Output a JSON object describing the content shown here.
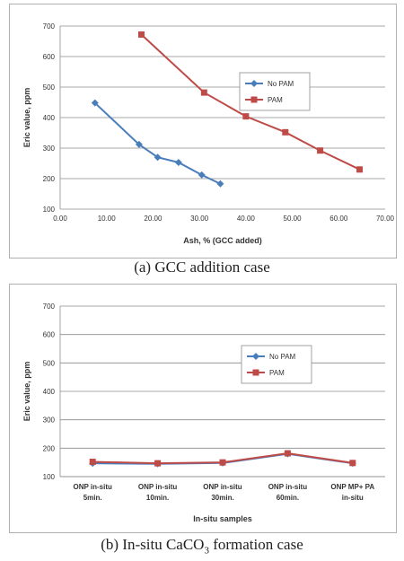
{
  "charts": [
    {
      "type": "line",
      "caption": "(a) GCC addition case",
      "xlabel": "Ash, % (GCC added)",
      "ylabel": "Eric value, ppm",
      "xlim": [
        0,
        70
      ],
      "ylim": [
        100,
        700
      ],
      "xticks": [
        "0.00",
        "10.00",
        "20.00",
        "30.00",
        "40.00",
        "50.00",
        "60.00",
        "70.00"
      ],
      "yticks": [
        "100",
        "200",
        "300",
        "400",
        "500",
        "600",
        "700"
      ],
      "grid": true,
      "legend_position": "right",
      "series": [
        {
          "name": "No PAM",
          "color": "#4a7ebb",
          "marker": "diamond",
          "x": [
            7.5,
            17.0,
            21.0,
            25.5,
            30.5,
            34.5
          ],
          "y": [
            448,
            312,
            270,
            253,
            212,
            183
          ]
        },
        {
          "name": "PAM",
          "color": "#be4b48",
          "marker": "square",
          "x": [
            17.5,
            31.0,
            40.0,
            48.5,
            56.0,
            64.5
          ],
          "y": [
            672,
            482,
            404,
            352,
            292,
            230
          ]
        }
      ]
    },
    {
      "type": "line",
      "caption_prefix": "(b) In-situ CaCO",
      "caption_sub": "3",
      "caption_suffix": " formation case",
      "xlabel": "In-situ samples",
      "ylabel": "Eric value, ppm",
      "ylim": [
        100,
        700
      ],
      "yticks": [
        "100",
        "200",
        "300",
        "400",
        "500",
        "600",
        "700"
      ],
      "categories": [
        [
          "ONP in-situ",
          "5min."
        ],
        [
          "ONP in-situ",
          "10min."
        ],
        [
          "ONP in-situ",
          "30min."
        ],
        [
          "ONP in-situ",
          "60min."
        ],
        [
          "ONP MP+ PA",
          "in-situ"
        ]
      ],
      "grid": true,
      "legend_position": "right",
      "series": [
        {
          "name": "No PAM",
          "color": "#4a7ebb",
          "marker": "diamond",
          "values": [
            147,
            145,
            148,
            180,
            147
          ]
        },
        {
          "name": "PAM",
          "color": "#be4b48",
          "marker": "square",
          "values": [
            152,
            147,
            150,
            182,
            148
          ]
        }
      ]
    }
  ]
}
